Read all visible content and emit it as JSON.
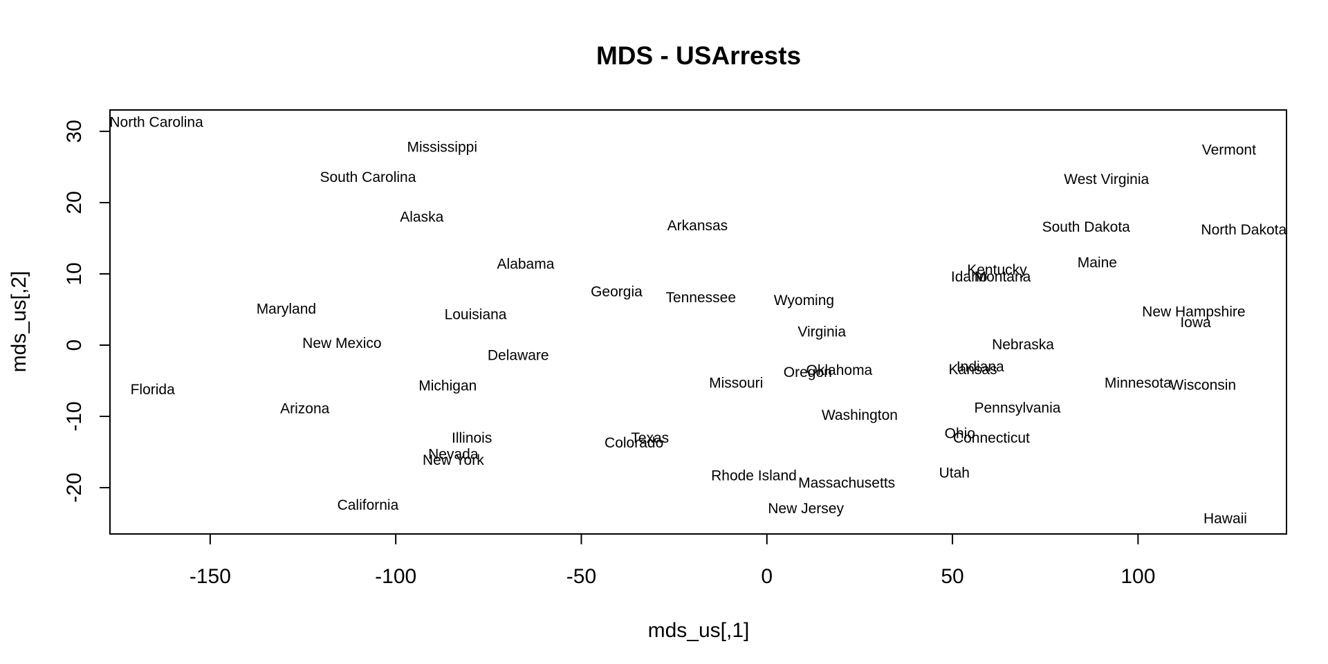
{
  "chart_data": {
    "type": "scatter",
    "title": "MDS - USArrests",
    "xlabel": "mds_us[,1]",
    "ylabel": "mds_us[,2]",
    "xlim": [
      -177,
      140
    ],
    "ylim": [
      -26.5,
      33
    ],
    "x_ticks": [
      -150,
      -100,
      -50,
      0,
      50,
      100
    ],
    "y_ticks": [
      -20,
      -10,
      0,
      10,
      20,
      30
    ],
    "x_tick_labels": [
      "-150",
      "-100",
      "-50",
      "0",
      "50",
      "100"
    ],
    "y_tick_labels": [
      "-20",
      "-10",
      "0",
      "10",
      "20",
      "30"
    ],
    "grid": false,
    "legend": "none",
    "marker": "text-labels",
    "points": [
      {
        "label": "Alabama",
        "x": -65.0,
        "y": 11.4
      },
      {
        "label": "Alaska",
        "x": -93.0,
        "y": 18.0
      },
      {
        "label": "Arizona",
        "x": -124.5,
        "y": -8.9
      },
      {
        "label": "Arkansas",
        "x": -18.7,
        "y": 16.8
      },
      {
        "label": "California",
        "x": -107.5,
        "y": -22.4
      },
      {
        "label": "Colorado",
        "x": -35.8,
        "y": -13.7
      },
      {
        "label": "Connecticut",
        "x": 60.5,
        "y": -13.0
      },
      {
        "label": "Delaware",
        "x": -67.0,
        "y": -1.4
      },
      {
        "label": "Florida",
        "x": -165.5,
        "y": -6.2
      },
      {
        "label": "Georgia",
        "x": -40.5,
        "y": 7.5
      },
      {
        "label": "Hawaii",
        "x": 123.5,
        "y": -24.3
      },
      {
        "label": "Idaho",
        "x": 54.5,
        "y": 9.6
      },
      {
        "label": "Illinois",
        "x": -79.5,
        "y": -13.0
      },
      {
        "label": "Indiana",
        "x": 57.5,
        "y": -3.0
      },
      {
        "label": "Iowa",
        "x": 115.5,
        "y": 3.2
      },
      {
        "label": "Kansas",
        "x": 55.5,
        "y": -3.4
      },
      {
        "label": "Kentucky",
        "x": 62.0,
        "y": 10.6
      },
      {
        "label": "Louisiana",
        "x": -78.5,
        "y": 4.3
      },
      {
        "label": "Maine",
        "x": 89.0,
        "y": 11.6
      },
      {
        "label": "Maryland",
        "x": -129.5,
        "y": 5.1
      },
      {
        "label": "Massachusetts",
        "x": 21.5,
        "y": -19.3
      },
      {
        "label": "Michigan",
        "x": -86.0,
        "y": -5.7
      },
      {
        "label": "Minnesota",
        "x": 100.0,
        "y": -5.3
      },
      {
        "label": "Mississippi",
        "x": -87.5,
        "y": 27.8
      },
      {
        "label": "Missouri",
        "x": -8.3,
        "y": -5.3
      },
      {
        "label": "Montana",
        "x": 63.5,
        "y": 9.6
      },
      {
        "label": "Nebraska",
        "x": 69.0,
        "y": 0.1
      },
      {
        "label": "Nevada",
        "x": -84.5,
        "y": -15.3
      },
      {
        "label": "New Hampshire",
        "x": 115.0,
        "y": 4.7
      },
      {
        "label": "New Jersey",
        "x": 10.5,
        "y": -22.9
      },
      {
        "label": "New Mexico",
        "x": -114.5,
        "y": 0.3
      },
      {
        "label": "New York",
        "x": -84.5,
        "y": -16.1
      },
      {
        "label": "North Carolina",
        "x": -164.5,
        "y": 31.3
      },
      {
        "label": "North Dakota",
        "x": 128.5,
        "y": 16.2
      },
      {
        "label": "Ohio",
        "x": 52.0,
        "y": -12.4
      },
      {
        "label": "Oklahoma",
        "x": 19.5,
        "y": -3.5
      },
      {
        "label": "Oregon",
        "x": 11.0,
        "y": -3.8
      },
      {
        "label": "Pennsylvania",
        "x": 67.5,
        "y": -8.8
      },
      {
        "label": "Rhode Island",
        "x": -3.5,
        "y": -18.3
      },
      {
        "label": "South Carolina",
        "x": -107.5,
        "y": 23.6
      },
      {
        "label": "South Dakota",
        "x": 86.0,
        "y": 16.6
      },
      {
        "label": "Tennessee",
        "x": -17.8,
        "y": 6.7
      },
      {
        "label": "Texas",
        "x": -31.5,
        "y": -13.0
      },
      {
        "label": "Utah",
        "x": 50.5,
        "y": -17.9
      },
      {
        "label": "Vermont",
        "x": 124.5,
        "y": 27.4
      },
      {
        "label": "Virginia",
        "x": 14.8,
        "y": 1.9
      },
      {
        "label": "Washington",
        "x": 25.0,
        "y": -9.8
      },
      {
        "label": "West Virginia",
        "x": 91.5,
        "y": 23.3
      },
      {
        "label": "Wisconsin",
        "x": 117.5,
        "y": -5.6
      },
      {
        "label": "Wyoming",
        "x": 10.0,
        "y": 6.3
      }
    ]
  }
}
